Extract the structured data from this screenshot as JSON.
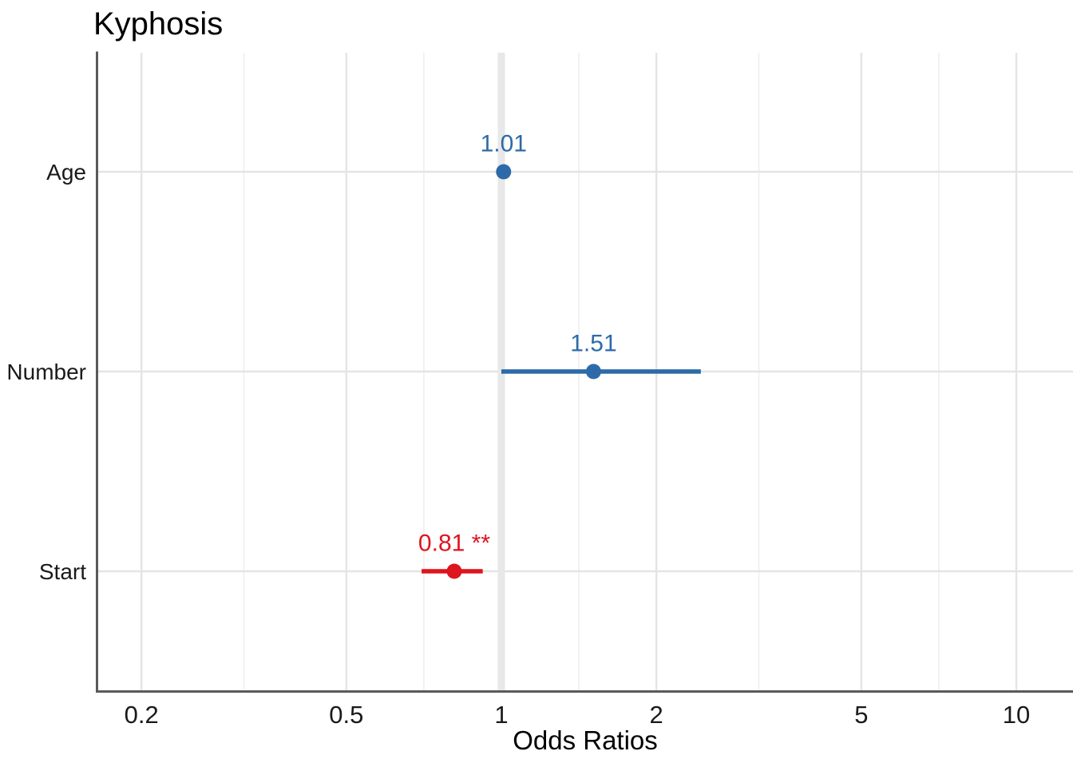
{
  "chart_data": {
    "type": "forest",
    "title": "Kyphosis",
    "xlabel": "Odds Ratios",
    "x_scale": "log10",
    "x_ticks": [
      0.2,
      0.5,
      1,
      2,
      5,
      10
    ],
    "x_tick_labels": [
      "0.2",
      "0.5",
      "1",
      "2",
      "5",
      "10"
    ],
    "x_minor_ticks": [
      0.3162,
      0.7071,
      1.4142,
      3.1623,
      7.0711
    ],
    "x_domain": [
      0.165,
      12.9
    ],
    "reference_line": 1,
    "grid": true,
    "legend": "none",
    "terms": [
      {
        "name": "Age",
        "estimate": 1.01,
        "ci_low": 1.0,
        "ci_high": 1.02,
        "label": "1.01",
        "significant": false,
        "color": "#2D6AA9"
      },
      {
        "name": "Number",
        "estimate": 1.51,
        "ci_low": 1.0,
        "ci_high": 2.44,
        "label": "1.51",
        "significant": false,
        "color": "#2D6AA9"
      },
      {
        "name": "Start",
        "estimate": 0.81,
        "ci_low": 0.7,
        "ci_high": 0.92,
        "label": "0.81 **",
        "significant": true,
        "color": "#DE141E"
      }
    ],
    "colors": {
      "positive_effect": "#2D6AA9",
      "negative_effect": "#DE141E",
      "grid_major": "#E4E4E4",
      "grid_minor": "#F0F0F0",
      "reference_band": "#E8E8E8",
      "axis_line": "#5A5A5A",
      "axis_text": "#1A1A1A",
      "title_text": "#000000"
    }
  }
}
